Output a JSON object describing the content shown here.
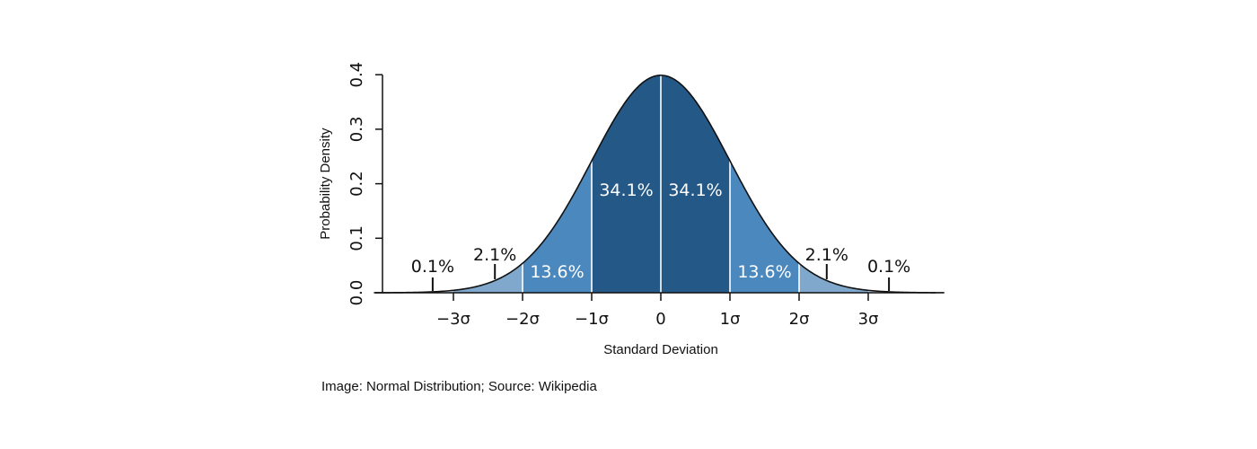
{
  "chart_data": {
    "type": "area",
    "distribution": "normal",
    "mean": 0,
    "sd": 1,
    "xlabel": "Standard Deviation",
    "ylabel": "Probability Density",
    "xlim": [
      -4,
      4
    ],
    "ylim": [
      0,
      0.4
    ],
    "xticks": [
      {
        "value": -3,
        "label": "−3σ"
      },
      {
        "value": -2,
        "label": "−2σ"
      },
      {
        "value": -1,
        "label": "−1σ"
      },
      {
        "value": 0,
        "label": "0"
      },
      {
        "value": 1,
        "label": "1σ"
      },
      {
        "value": 2,
        "label": "2σ"
      },
      {
        "value": 3,
        "label": "3σ"
      }
    ],
    "yticks": [
      {
        "value": 0.0,
        "label": "0.0"
      },
      {
        "value": 0.1,
        "label": "0.1"
      },
      {
        "value": 0.2,
        "label": "0.2"
      },
      {
        "value": 0.3,
        "label": "0.3"
      },
      {
        "value": 0.4,
        "label": "0.4"
      }
    ],
    "regions": [
      {
        "from": -4,
        "to": -3,
        "color": "#d9e4ef",
        "label": "0.1%",
        "label_value": -3.3,
        "label_color": "#111111",
        "outside": true
      },
      {
        "from": -3,
        "to": -2,
        "color": "#7fa8cc",
        "label": "2.1%",
        "label_value": -2.4,
        "label_color": "#111111",
        "outside": true
      },
      {
        "from": -2,
        "to": -1,
        "color": "#4a88bd",
        "label": "13.6%",
        "label_value": -1.5,
        "label_color": "#ffffff",
        "outside": false
      },
      {
        "from": -1,
        "to": 0,
        "color": "#245887",
        "label": "34.1%",
        "label_value": -0.5,
        "label_color": "#ffffff",
        "outside": false
      },
      {
        "from": 0,
        "to": 1,
        "color": "#245887",
        "label": "34.1%",
        "label_value": 0.5,
        "label_color": "#ffffff",
        "outside": false
      },
      {
        "from": 1,
        "to": 2,
        "color": "#4a88bd",
        "label": "13.6%",
        "label_value": 1.5,
        "label_color": "#ffffff",
        "outside": false
      },
      {
        "from": 2,
        "to": 3,
        "color": "#7fa8cc",
        "label": "2.1%",
        "label_value": 2.4,
        "label_color": "#111111",
        "outside": true
      },
      {
        "from": 3,
        "to": 4,
        "color": "#d9e4ef",
        "label": "0.1%",
        "label_value": 3.3,
        "label_color": "#111111",
        "outside": true
      }
    ],
    "grid": false,
    "legend": "none"
  },
  "caption": "Image: Normal Distribution; Source: Wikipedia"
}
